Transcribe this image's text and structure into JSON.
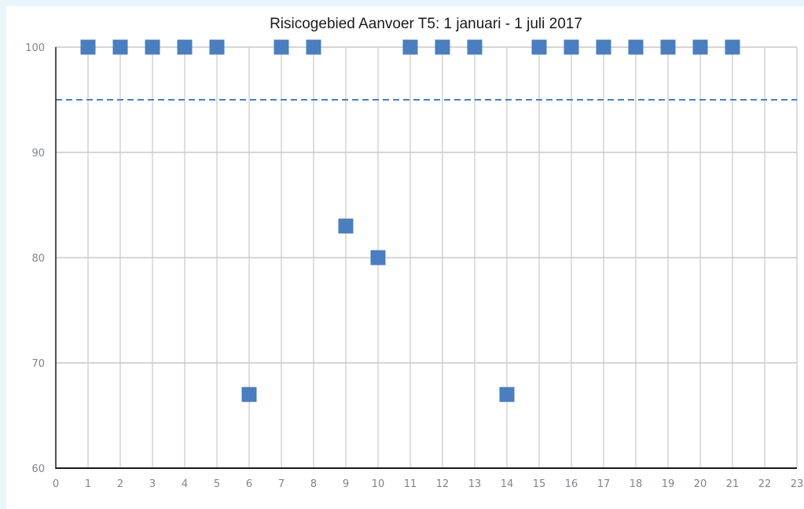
{
  "chart_data": {
    "type": "scatter",
    "title": "Risicogebied Aanvoer T5: 1 januari - 1 juli 2017",
    "xlabel": "",
    "ylabel": "",
    "xlim": [
      0,
      23
    ],
    "ylim": [
      60,
      100
    ],
    "xticks": [
      0,
      1,
      2,
      3,
      4,
      5,
      6,
      7,
      8,
      9,
      10,
      11,
      12,
      13,
      14,
      15,
      16,
      17,
      18,
      19,
      20,
      21,
      22,
      23
    ],
    "yticks": [
      60,
      70,
      80,
      90,
      100
    ],
    "grid": true,
    "legend": "none",
    "marker": "square",
    "series": [
      {
        "color": "#4a7ebf",
        "points": [
          {
            "x": 1,
            "y": 100
          },
          {
            "x": 2,
            "y": 100
          },
          {
            "x": 3,
            "y": 100
          },
          {
            "x": 4,
            "y": 100
          },
          {
            "x": 5,
            "y": 100
          },
          {
            "x": 6,
            "y": 67
          },
          {
            "x": 7,
            "y": 100
          },
          {
            "x": 8,
            "y": 100
          },
          {
            "x": 9,
            "y": 83
          },
          {
            "x": 10,
            "y": 80
          },
          {
            "x": 11,
            "y": 100
          },
          {
            "x": 12,
            "y": 100
          },
          {
            "x": 13,
            "y": 100
          },
          {
            "x": 14,
            "y": 67
          },
          {
            "x": 15,
            "y": 100
          },
          {
            "x": 16,
            "y": 100
          },
          {
            "x": 17,
            "y": 100
          },
          {
            "x": 18,
            "y": 100
          },
          {
            "x": 19,
            "y": 100
          },
          {
            "x": 20,
            "y": 100
          },
          {
            "x": 21,
            "y": 100
          }
        ]
      }
    ],
    "reference_line": {
      "y": 95,
      "style": "dashed",
      "color": "#4a7ebf"
    },
    "colors": {
      "gridline": "#d4d4d4",
      "axis": "#1a1a1a",
      "tick_text": "#7c8590",
      "page_background": "#eaf4fb"
    }
  }
}
